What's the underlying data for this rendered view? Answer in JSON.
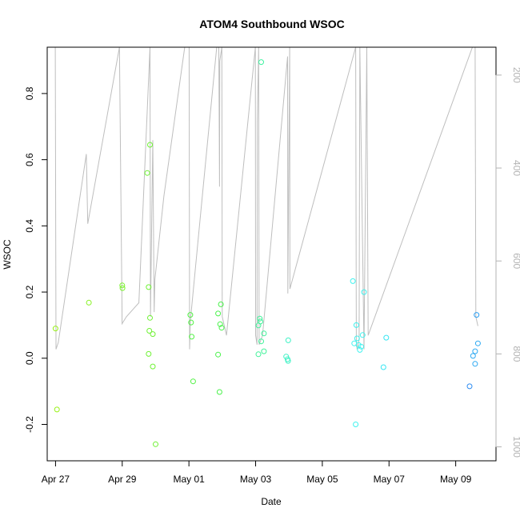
{
  "chart_data": {
    "type": "scatter",
    "title": "ATOM4 Southbound WSOC",
    "xlabel": "Date",
    "ylabel": "WSOC",
    "xlim": [
      "2016-04-26 18:00",
      "2016-05-10 05:00"
    ],
    "ylim": [
      -0.31,
      0.94
    ],
    "x_ticks": [
      "2016-04-27",
      "2016-04-29",
      "2016-05-01",
      "2016-05-03",
      "2016-05-05",
      "2016-05-07",
      "2016-05-09"
    ],
    "x_tick_labels": [
      "Apr 27",
      "Apr 29",
      "May 01",
      "May 03",
      "May 05",
      "May 07",
      "May 09"
    ],
    "y_ticks": [
      -0.2,
      0.0,
      0.2,
      0.4,
      0.6,
      0.8
    ],
    "y_tick_labels": [
      "-0.2",
      "0.0",
      "0.2",
      "0.4",
      "0.6",
      "0.8"
    ],
    "secondary_axis": {
      "side": "right",
      "ylim": [
        1030,
        140
      ],
      "ticks": [
        200,
        400,
        600,
        800,
        1000
      ],
      "tick_labels": [
        "200",
        "400",
        "600",
        "800",
        "1000"
      ],
      "color": "#b3b3b3"
    },
    "altitude_track": {
      "color": "#bebebe",
      "points": [
        [
          "2016-04-26 23:50",
          140
        ],
        [
          "2016-04-27 00:20",
          790
        ],
        [
          "2016-04-27 02:00",
          775
        ],
        [
          "2016-04-27 22:10",
          370
        ],
        [
          "2016-04-27 23:10",
          520
        ],
        [
          "2016-04-28 22:00",
          140
        ],
        [
          "2016-04-28 23:50",
          700
        ],
        [
          "2016-04-28 23:55",
          735
        ],
        [
          "2016-04-29 03:00",
          720
        ],
        [
          "2016-04-29 12:00",
          690
        ],
        [
          "2016-04-29 20:00",
          140
        ],
        [
          "2016-04-29 20:20",
          720
        ],
        [
          "2016-04-29 22:00",
          340
        ],
        [
          "2016-04-29 23:00",
          710
        ],
        [
          "2016-04-29 23:30",
          640
        ],
        [
          "2016-04-30 06:00",
          460
        ],
        [
          "2016-04-30 21:00",
          140
        ],
        [
          "2016-05-01 00:10",
          140
        ],
        [
          "2016-05-01 00:30",
          790
        ],
        [
          "2016-05-01 01:00",
          730
        ],
        [
          "2016-05-01 09:00",
          480
        ],
        [
          "2016-05-01 20:00",
          140
        ],
        [
          "2016-05-01 21:30",
          140
        ],
        [
          "2016-05-01 22:00",
          440
        ],
        [
          "2016-05-01 22:10",
          170
        ],
        [
          "2016-05-01 23:40",
          140
        ],
        [
          "2016-05-02 00:00",
          720
        ],
        [
          "2016-05-02 03:00",
          760
        ],
        [
          "2016-05-02 23:50",
          140
        ],
        [
          "2016-05-03 00:00",
          760
        ],
        [
          "2016-05-03 01:00",
          780
        ],
        [
          "2016-05-03 01:10",
          300
        ],
        [
          "2016-05-03 02:10",
          140
        ],
        [
          "2016-05-03 02:30",
          780
        ],
        [
          "2016-05-03 05:00",
          760
        ],
        [
          "2016-05-03 23:00",
          160
        ],
        [
          "2016-05-03 23:10",
          670
        ],
        [
          "2016-05-04 00:30",
          140
        ],
        [
          "2016-05-04 00:40",
          660
        ],
        [
          "2016-05-06 00:00",
          140
        ],
        [
          "2016-05-06 00:30",
          770
        ],
        [
          "2016-05-06 01:00",
          790
        ],
        [
          "2016-05-06 02:30",
          770
        ],
        [
          "2016-05-06 03:00",
          140
        ],
        [
          "2016-05-06 06:00",
          790
        ],
        [
          "2016-05-06 08:00",
          140
        ],
        [
          "2016-05-06 09:00",
          760
        ],
        [
          "2016-05-09 12:00",
          140
        ],
        [
          "2016-05-09 14:00",
          140
        ],
        [
          "2016-05-09 14:30",
          720
        ],
        [
          "2016-05-09 16:00",
          740
        ]
      ]
    },
    "series": [
      {
        "values": [
          [
            "2016-04-27 00:00",
            0.09,
            "#98f217"
          ],
          [
            "2016-04-27 01:00",
            -0.155,
            "#98f217"
          ],
          [
            "2016-04-28 00:00",
            0.168,
            "#87f222"
          ],
          [
            "2016-04-29 00:00",
            0.22,
            "#79f22c"
          ],
          [
            "2016-04-29 00:10",
            0.212,
            "#79f22c"
          ],
          [
            "2016-04-29 20:00",
            0.645,
            "#6ef233"
          ],
          [
            "2016-04-29 18:00",
            0.56,
            "#6ef233"
          ],
          [
            "2016-04-29 19:00",
            0.215,
            "#6ef233"
          ],
          [
            "2016-04-29 20:00",
            0.122,
            "#6ef233"
          ],
          [
            "2016-04-29 19:30",
            0.083,
            "#6ef233"
          ],
          [
            "2016-04-29 22:00",
            0.073,
            "#6ef233"
          ],
          [
            "2016-04-29 19:00",
            0.013,
            "#6ef233"
          ],
          [
            "2016-04-29 22:00",
            -0.025,
            "#6ef233"
          ],
          [
            "2016-04-30 00:00",
            -0.26,
            "#6ef233"
          ],
          [
            "2016-05-01 01:00",
            0.131,
            "#52f245"
          ],
          [
            "2016-05-01 01:30",
            0.108,
            "#52f245"
          ],
          [
            "2016-05-01 02:00",
            0.065,
            "#52f245"
          ],
          [
            "2016-05-01 03:00",
            -0.07,
            "#52f245"
          ],
          [
            "2016-05-01 21:00",
            0.135,
            "#4af24b"
          ],
          [
            "2016-05-01 22:30",
            0.103,
            "#4af24b"
          ],
          [
            "2016-05-01 23:00",
            0.163,
            "#4af24b"
          ],
          [
            "2016-05-01 23:30",
            0.092,
            "#4af24b"
          ],
          [
            "2016-05-01 21:00",
            0.011,
            "#4af24b"
          ],
          [
            "2016-05-01 22:00",
            -0.102,
            "#4af24b"
          ],
          [
            "2016-05-03 04:00",
            0.895,
            "#3ff2a0"
          ],
          [
            "2016-05-03 02:00",
            0.099,
            "#3ff299"
          ],
          [
            "2016-05-03 03:00",
            0.12,
            "#3ff299"
          ],
          [
            "2016-05-03 03:30",
            0.111,
            "#3ff299"
          ],
          [
            "2016-05-03 06:00",
            0.075,
            "#3ff299"
          ],
          [
            "2016-05-03 04:00",
            0.051,
            "#3ff299"
          ],
          [
            "2016-05-03 06:00",
            0.021,
            "#3ff299"
          ],
          [
            "2016-05-03 02:00",
            0.012,
            "#3ff299"
          ],
          [
            "2016-05-03 22:00",
            0.005,
            "#3ff2c5"
          ],
          [
            "2016-05-03 23:30",
            0.054,
            "#3ff2c5"
          ],
          [
            "2016-05-03 23:00",
            -0.003,
            "#3ff2c5"
          ],
          [
            "2016-05-03 23:20",
            -0.008,
            "#3ff2c5"
          ],
          [
            "2016-05-05 22:00",
            0.233,
            "#3ff2ee"
          ],
          [
            "2016-05-06 00:30",
            0.1,
            "#3ff2ee"
          ],
          [
            "2016-05-06 06:00",
            0.2,
            "#3ff2ee"
          ],
          [
            "2016-05-06 05:00",
            0.07,
            "#3ff2ee"
          ],
          [
            "2016-05-05 23:00",
            0.045,
            "#3ff2ee"
          ],
          [
            "2016-05-06 01:00",
            0.06,
            "#3ff2ee"
          ],
          [
            "2016-05-06 02:00",
            0.04,
            "#3ff2ee"
          ],
          [
            "2016-05-06 04:00",
            0.035,
            "#3ff2ee"
          ],
          [
            "2016-05-06 03:00",
            0.025,
            "#3ff2ee"
          ],
          [
            "2016-05-06 00:00",
            -0.2,
            "#3ff2ee"
          ],
          [
            "2016-05-06 22:00",
            0.062,
            "#36e6f2"
          ],
          [
            "2016-05-06 20:00",
            -0.027,
            "#36e6f2"
          ],
          [
            "2016-05-09 15:00",
            0.131,
            "#2b9ff2"
          ],
          [
            "2016-05-09 16:00",
            0.045,
            "#2ba8f2"
          ],
          [
            "2016-05-09 14:00",
            0.021,
            "#2ba8f2"
          ],
          [
            "2016-05-09 12:30",
            0.007,
            "#2ba8f2"
          ],
          [
            "2016-05-09 14:00",
            -0.017,
            "#2ba8f2"
          ],
          [
            "2016-05-09 10:00",
            -0.085,
            "#2b8bf2"
          ]
        ]
      }
    ],
    "grid": false,
    "legend": "none"
  }
}
